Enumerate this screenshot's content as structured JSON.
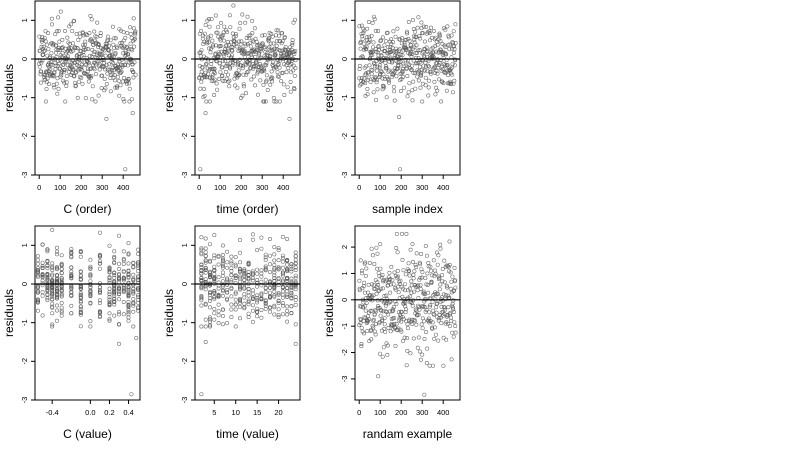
{
  "chart_data": [
    {
      "type": "scatter",
      "xlabel": "C (order)",
      "ylabel": "residuals",
      "xlim": [
        -20,
        480
      ],
      "ylim": [
        -3,
        1.5
      ],
      "xticks": [
        0,
        100,
        200,
        300,
        400
      ],
      "yticks": [
        -3,
        -2,
        -1,
        0,
        1
      ],
      "xtick_labels": [
        "0",
        "100",
        "200",
        "300",
        "400"
      ],
      "ytick_labels": [
        "-3",
        "-2",
        "-1",
        "0",
        "1"
      ],
      "hline": 0,
      "gen": {
        "kind": "index",
        "n": 460,
        "sd": 0.45,
        "seed": 11
      },
      "outliers": [
        [
          410,
          -2.85
        ],
        [
          320,
          -1.55
        ],
        [
          445,
          -1.4
        ]
      ]
    },
    {
      "type": "scatter",
      "xlabel": "time (order)",
      "ylabel": "residuals",
      "xlim": [
        -20,
        480
      ],
      "ylim": [
        -3,
        1.5
      ],
      "xticks": [
        0,
        100,
        200,
        300,
        400
      ],
      "yticks": [
        -3,
        -2,
        -1,
        0,
        1
      ],
      "xtick_labels": [
        "0",
        "100",
        "200",
        "300",
        "400"
      ],
      "ytick_labels": [
        "-3",
        "-2",
        "-1",
        "0",
        "1"
      ],
      "hline": 0,
      "gen": {
        "kind": "index",
        "n": 460,
        "sd": 0.45,
        "seed": 23
      },
      "outliers": [
        [
          5,
          -2.85
        ],
        [
          430,
          -1.55
        ],
        [
          30,
          -1.4
        ]
      ]
    },
    {
      "type": "scatter",
      "xlabel": "sample index",
      "ylabel": "residuals",
      "xlim": [
        -20,
        480
      ],
      "ylim": [
        -3,
        1.5
      ],
      "xticks": [
        0,
        100,
        200,
        300,
        400
      ],
      "yticks": [
        -3,
        -2,
        -1,
        0,
        1
      ],
      "xtick_labels": [
        "0",
        "100",
        "200",
        "300",
        "400"
      ],
      "ytick_labels": [
        "-3",
        "-2",
        "-1",
        "0",
        "1"
      ],
      "hline": 0,
      "gen": {
        "kind": "index",
        "n": 460,
        "sd": 0.45,
        "seed": 37
      },
      "outliers": [
        [
          195,
          -2.85
        ],
        [
          190,
          -1.5
        ],
        [
          300,
          -1.1
        ]
      ]
    },
    {
      "type": "scatter",
      "xlabel": "C (value)",
      "ylabel": "residuals",
      "xlim": [
        -0.58,
        0.52
      ],
      "ylim": [
        -3,
        1.5
      ],
      "xticks": [
        -0.4,
        0.0,
        0.2,
        0.4
      ],
      "yticks": [
        -3,
        -2,
        -1,
        0,
        1
      ],
      "xtick_labels": [
        "-0.4",
        "0.0",
        "0.2",
        "0.4"
      ],
      "ytick_labels": [
        "-3",
        "-2",
        "-1",
        "0",
        "1"
      ],
      "hline": 0,
      "gen": {
        "kind": "columns",
        "n": 460,
        "sd": 0.45,
        "seed": 51,
        "columns": [
          -0.55,
          -0.5,
          -0.45,
          -0.4,
          -0.35,
          -0.3,
          -0.2,
          -0.1,
          0.0,
          0.1,
          0.2,
          0.25,
          0.3,
          0.35,
          0.4,
          0.45,
          0.5
        ]
      },
      "outliers": [
        [
          0.43,
          -2.85
        ],
        [
          0.3,
          -1.55
        ],
        [
          0.48,
          -1.4
        ]
      ]
    },
    {
      "type": "scatter",
      "xlabel": "time (value)",
      "ylabel": "residuals",
      "xlim": [
        0.5,
        25
      ],
      "ylim": [
        -3,
        1.5
      ],
      "xticks": [
        5,
        10,
        15,
        20
      ],
      "yticks": [
        -3,
        -2,
        -1,
        0,
        1
      ],
      "xtick_labels": [
        "5",
        "10",
        "15",
        "20"
      ],
      "ytick_labels": [
        "-3",
        "-2",
        "-1",
        "0",
        "1"
      ],
      "hline": 0,
      "gen": {
        "kind": "columns",
        "n": 460,
        "sd": 0.45,
        "seed": 67,
        "columns": [
          2,
          3,
          4,
          5,
          6,
          7,
          8,
          9,
          10,
          11,
          12,
          13,
          14,
          15,
          16,
          17,
          18,
          19,
          20,
          21,
          22,
          23,
          24
        ]
      },
      "outliers": [
        [
          2,
          -2.85
        ],
        [
          3,
          -1.5
        ],
        [
          24,
          -1.55
        ]
      ]
    },
    {
      "type": "scatter",
      "xlabel": "randam example",
      "ylabel": "residuals",
      "xlim": [
        -20,
        480
      ],
      "ylim": [
        -3.8,
        2.8
      ],
      "xticks": [
        0,
        100,
        200,
        300,
        400
      ],
      "yticks": [
        -3,
        -2,
        -1,
        0,
        1,
        2
      ],
      "xtick_labels": [
        "0",
        "100",
        "200",
        "300",
        "400"
      ],
      "ytick_labels": [
        "-3",
        "-2",
        "-1",
        "0",
        "1",
        "2"
      ],
      "hline": 0,
      "gen": {
        "kind": "index",
        "n": 460,
        "sd": 1.0,
        "seed": 89
      },
      "outliers": [
        [
          310,
          -3.6
        ],
        [
          90,
          -2.9
        ]
      ]
    }
  ]
}
